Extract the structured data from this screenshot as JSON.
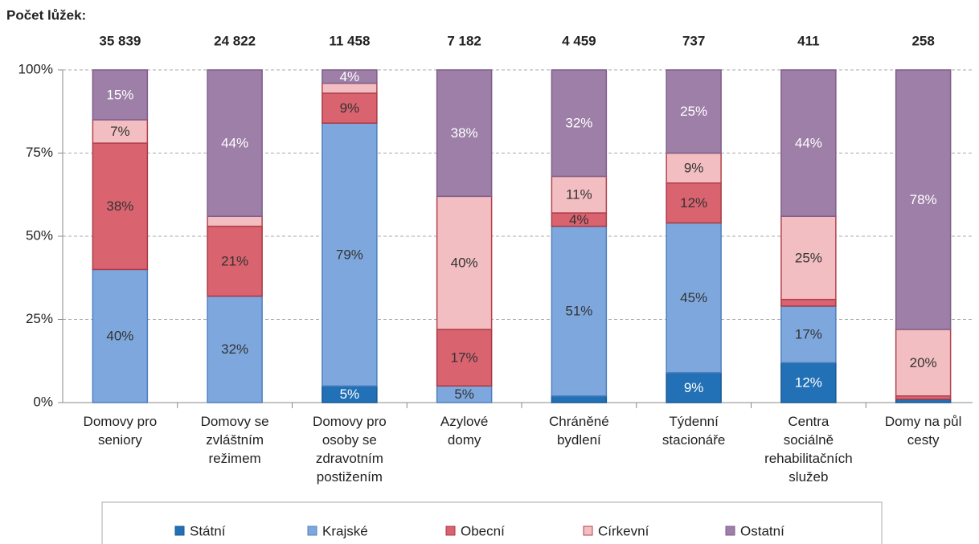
{
  "chart_data": {
    "type": "stacked-bar-100",
    "heading": "Počet lůžek:",
    "bed_counts": [
      "35 839",
      "24 822",
      "11 458",
      "7 182",
      "4 459",
      "737",
      "411",
      "258"
    ],
    "categories": [
      "Domovy pro\nseniory",
      "Domovy se\nzvláštním\nrežimem",
      "Domovy pro\nosoby se\nzdravotním\npostižením",
      "Azylové\ndomy",
      "Chráněné\nbydlení",
      "Týdenní\nstacionáře",
      "Centra\nsociálně\nrehabilitačních\nslužeb",
      "Domy na půl\ncesty"
    ],
    "ylim": [
      0,
      100
    ],
    "yticks": [
      {
        "value": 0,
        "label": "0%"
      },
      {
        "value": 25,
        "label": "25%"
      },
      {
        "value": 50,
        "label": "50%"
      },
      {
        "value": 75,
        "label": "75%"
      },
      {
        "value": 100,
        "label": "100%"
      }
    ],
    "grid": true,
    "legend": "bottom",
    "series": [
      {
        "name": "Státní",
        "color": "#2270b5",
        "edge": "#1a5a94",
        "label_color": "#ffffff",
        "values": [
          0,
          0,
          5,
          0,
          2,
          9,
          12,
          1
        ],
        "value_labels": [
          null,
          null,
          "5%",
          null,
          null,
          "9%",
          "12%",
          null
        ]
      },
      {
        "name": "Krajské",
        "color": "#7ea8dd",
        "edge": "#4f7fbf",
        "label_color": "#333333",
        "values": [
          40,
          32,
          79,
          5,
          51,
          45,
          17,
          0
        ],
        "value_labels": [
          "40%",
          "32%",
          "79%",
          "5%",
          "51%",
          "45%",
          "17%",
          null
        ]
      },
      {
        "name": "Obecní",
        "color": "#d9636f",
        "edge": "#a83a45",
        "label_color": "#333333",
        "values": [
          38,
          21,
          9,
          17,
          4,
          12,
          2,
          1
        ],
        "value_labels": [
          "38%",
          "21%",
          "9%",
          "17%",
          "4%",
          "12%",
          null,
          null
        ]
      },
      {
        "name": "Církevní",
        "color": "#f3bec2",
        "edge": "#b2434d",
        "label_color": "#333333",
        "values": [
          7,
          3,
          3,
          40,
          11,
          9,
          25,
          20
        ],
        "value_labels": [
          "7%",
          null,
          null,
          "40%",
          "11%",
          "9%",
          "25%",
          "20%"
        ]
      },
      {
        "name": "Ostatní",
        "color": "#9e7fa8",
        "edge": "#7f5e8a",
        "label_color": "#ffffff",
        "values": [
          15,
          44,
          4,
          38,
          32,
          25,
          44,
          78
        ],
        "value_labels": [
          "15%",
          "44%",
          "4%",
          "38%",
          "32%",
          "25%",
          "44%",
          "78%"
        ]
      }
    ]
  }
}
